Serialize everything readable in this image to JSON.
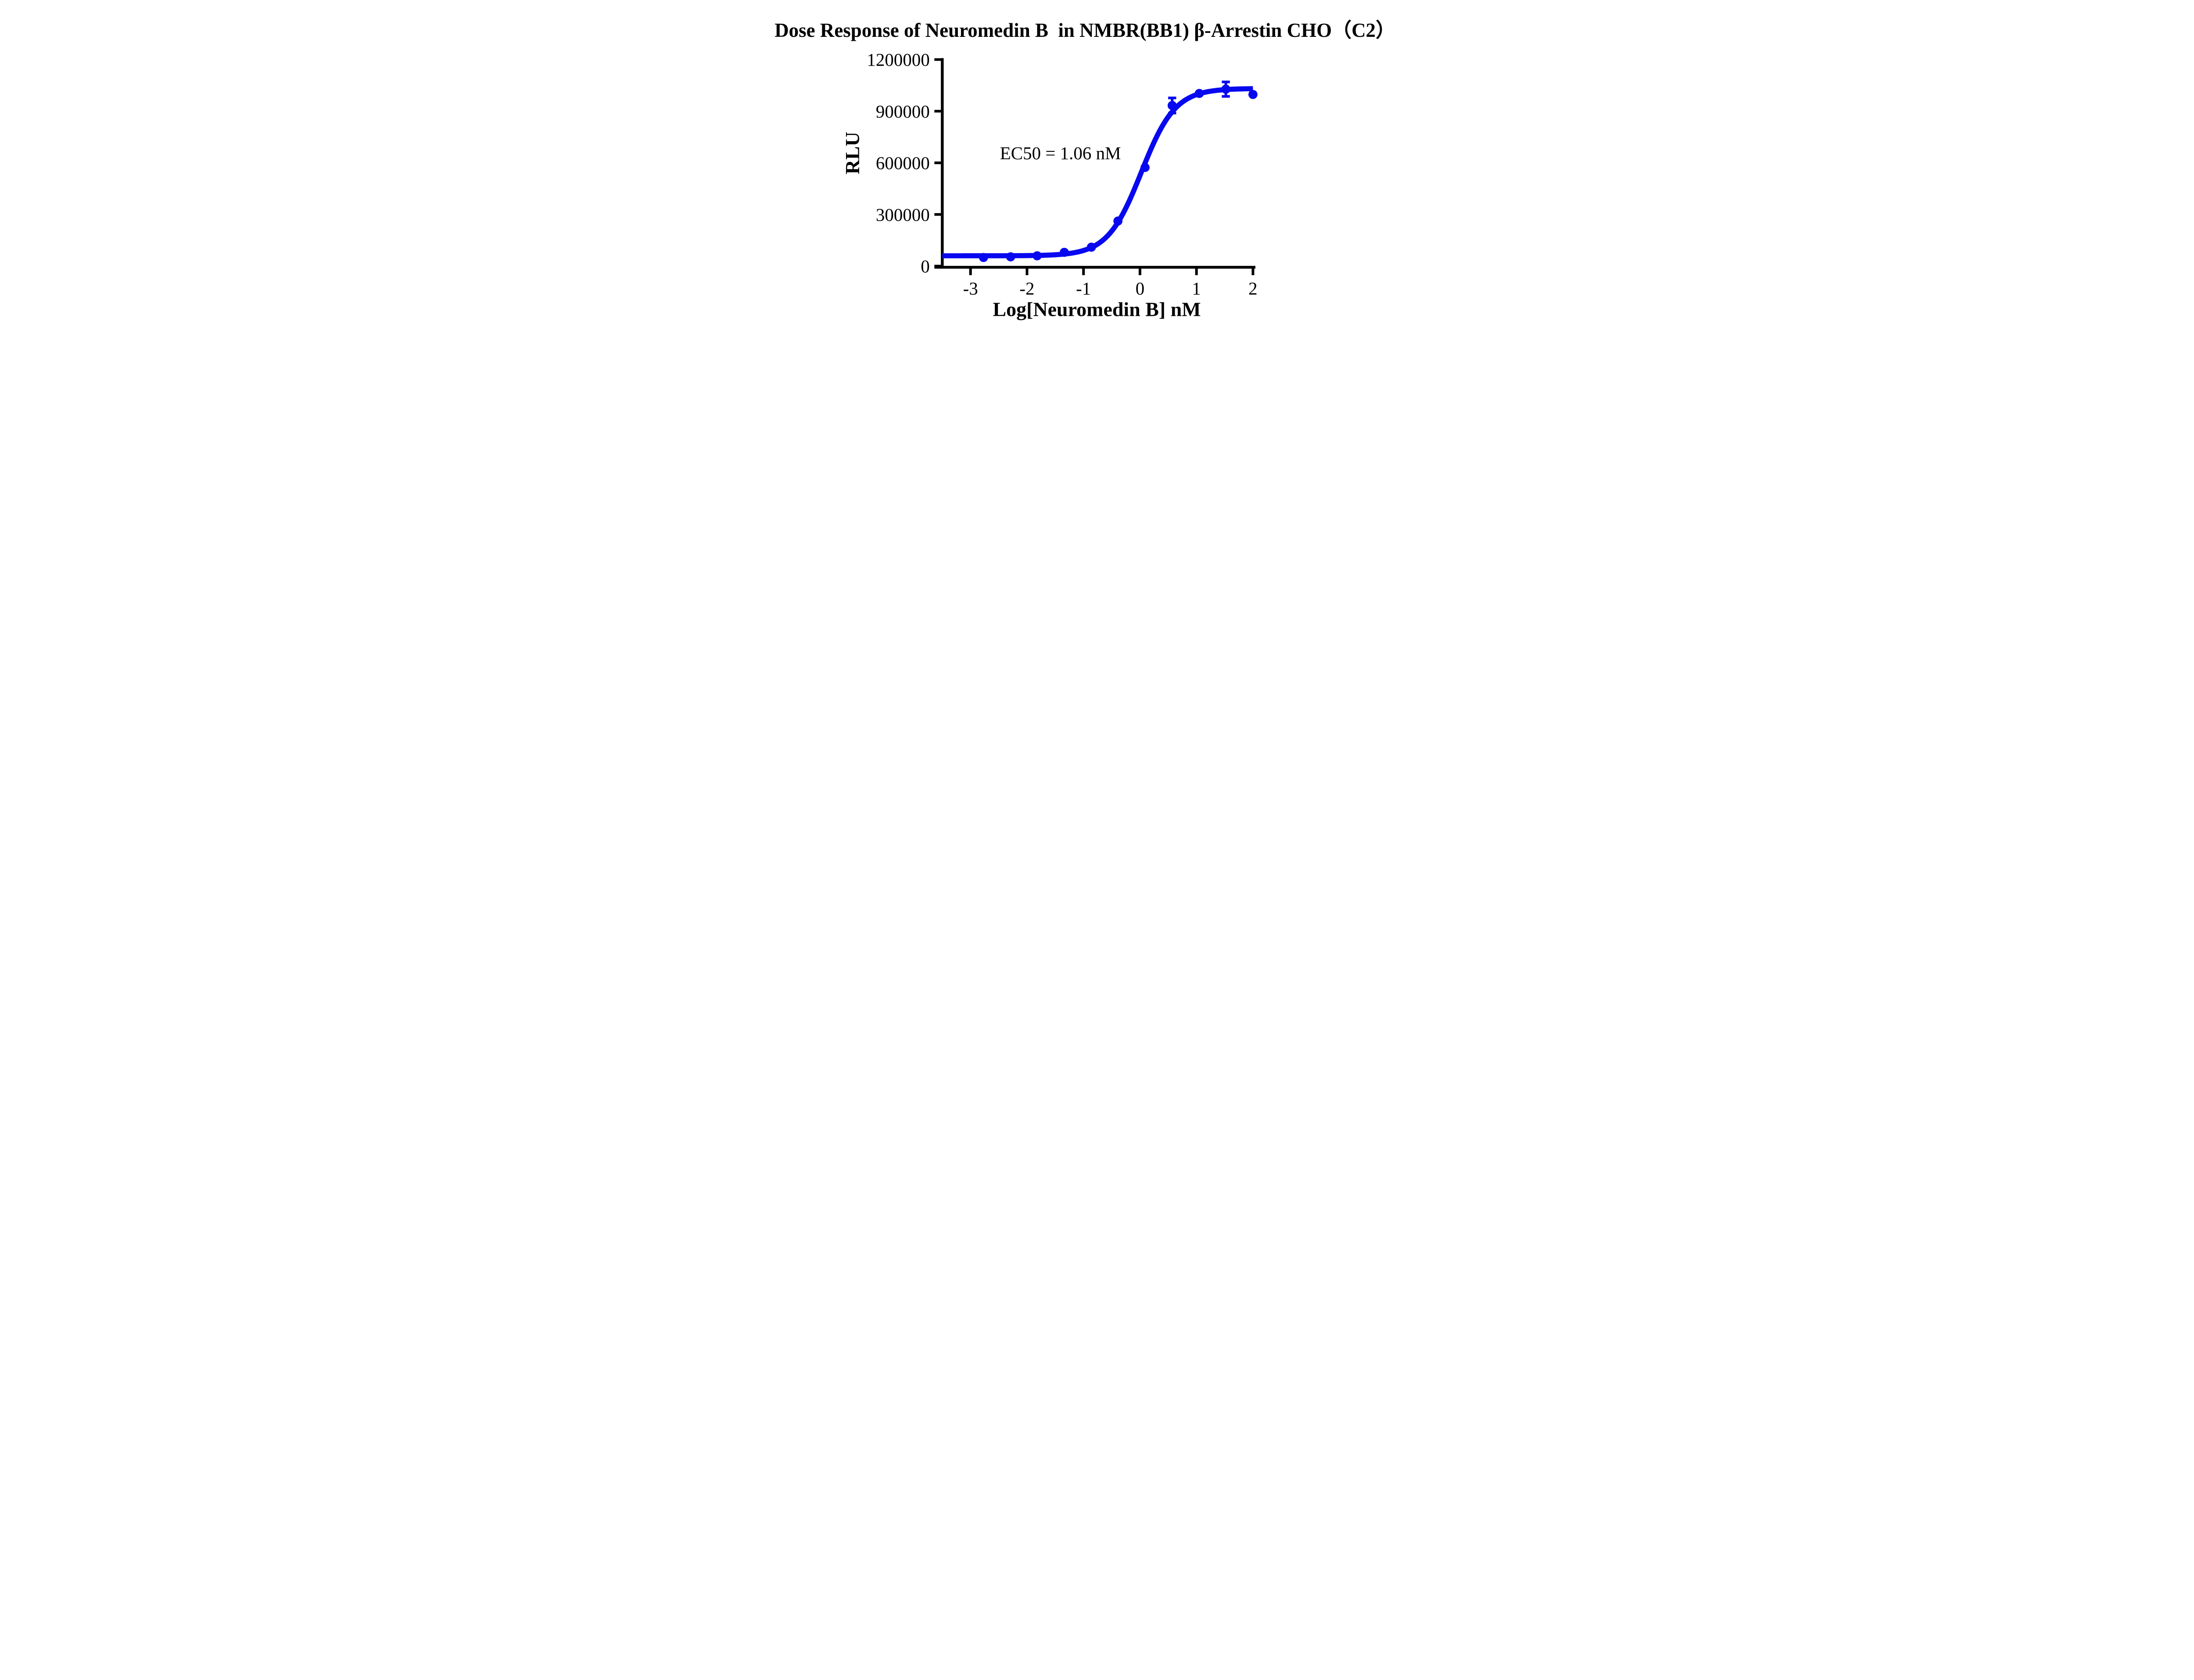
{
  "figure": {
    "background_color": "#ffffff",
    "text_color": "#000000"
  },
  "chart_data": {
    "type": "scatter",
    "title": "Dose Response of Neuromedin B  in NMBR(BB1) β-Arrestin CHO（C2）",
    "xlabel": "Log[Neuromedin B] nM",
    "ylabel": "RLU",
    "annotation": "EC50 = 1.06 nM",
    "grid": false,
    "legend_position": "none",
    "xlim": [
      -3.5,
      2.05
    ],
    "ylim": [
      0,
      1200000
    ],
    "x_ticks": [
      -3,
      -2,
      -1,
      0,
      1,
      2
    ],
    "y_ticks": [
      0,
      300000,
      600000,
      900000,
      1200000
    ],
    "series": [
      {
        "name": "Neuromedin B",
        "color": "#0808f0",
        "marker": "circle",
        "x": [
          -2.77,
          -2.29,
          -1.82,
          -1.34,
          -0.86,
          -0.39,
          0.09,
          0.57,
          1.05,
          1.52,
          2.0
        ],
        "y": [
          50000,
          54000,
          60000,
          80000,
          110000,
          262000,
          573000,
          933000,
          1003000,
          1028000,
          997000
        ],
        "error_bars": [
          {
            "x": 0.57,
            "y": 933000,
            "plus": 44000,
            "minus": 44000
          },
          {
            "x": 1.52,
            "y": 1028000,
            "plus": 42000,
            "minus": 42000
          }
        ]
      }
    ],
    "fit_curve": {
      "model": "4PL",
      "bottom": 60000,
      "top": 1032000,
      "log_ec50": 0.025,
      "hill_slope": 1.45,
      "ec50_nM": 1.06
    }
  }
}
